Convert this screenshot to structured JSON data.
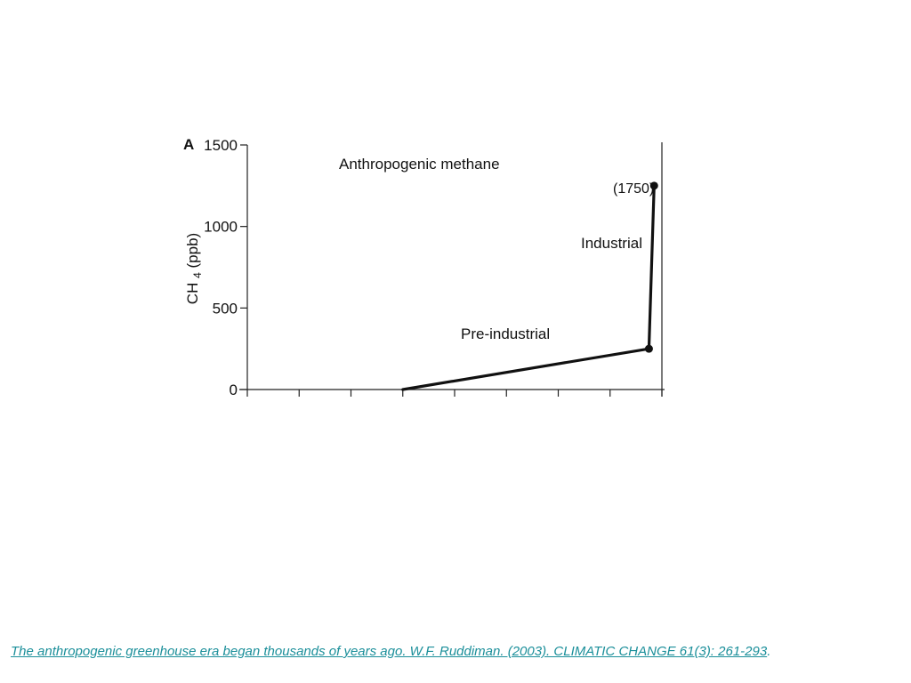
{
  "chart_data": {
    "type": "line",
    "panel_label": "A",
    "title": "Anthropogenic methane",
    "xlabel": "",
    "ylabel": "CH4 (ppb)",
    "ylim": [
      0,
      1500
    ],
    "yticks": [
      0,
      500,
      1000,
      1500
    ],
    "x_tick_count": 9,
    "xlim": [
      0,
      8
    ],
    "grid": false,
    "series": [
      {
        "values_x": [
          3,
          7.75,
          7.85
        ],
        "values_y": [
          0,
          250,
          1250
        ],
        "markers_at": [
          1,
          2
        ]
      }
    ],
    "annotations": [
      {
        "text": "(1750)"
      },
      {
        "text": "Industrial"
      },
      {
        "text": "Pre-industrial"
      }
    ]
  },
  "caption": {
    "link_text": "The anthropogenic greenhouse era began thousands of years ago. W.F. Ruddiman. (2003). CLIMATIC CHANGE 61(3): 261-293",
    "trailing": "."
  }
}
